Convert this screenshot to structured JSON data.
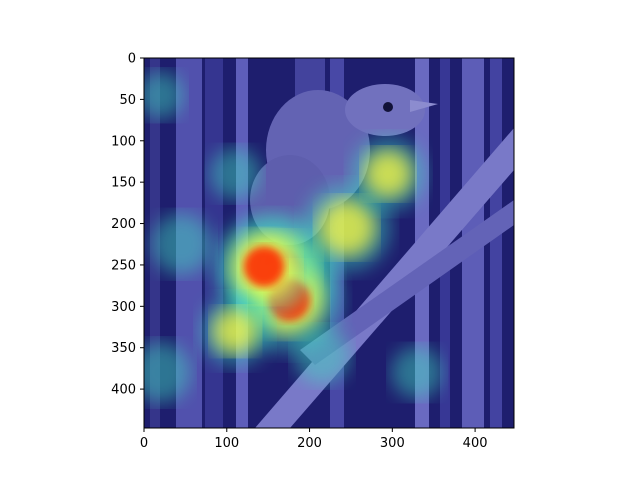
{
  "chart_data": {
    "type": "heatmap",
    "title": "",
    "xlabel": "",
    "ylabel": "",
    "xlim": [
      0,
      447
    ],
    "ylim": [
      447,
      0
    ],
    "xticks": [
      "0",
      "100",
      "200",
      "300",
      "400"
    ],
    "yticks": [
      "0",
      "50",
      "100",
      "150",
      "200",
      "250",
      "300",
      "350",
      "400"
    ],
    "colormap": "jet",
    "grid": false,
    "background_image": "bird-perched-on-reeds",
    "hotspots": [
      {
        "x": 165,
        "y": 258,
        "intensity": 1.0
      },
      {
        "x": 175,
        "y": 292,
        "intensity": 0.95
      },
      {
        "x": 145,
        "y": 252,
        "intensity": 0.9
      },
      {
        "x": 245,
        "y": 205,
        "intensity": 0.75
      },
      {
        "x": 295,
        "y": 140,
        "intensity": 0.6
      },
      {
        "x": 110,
        "y": 330,
        "intensity": 0.55
      },
      {
        "x": 45,
        "y": 225,
        "intensity": 0.45
      },
      {
        "x": 215,
        "y": 360,
        "intensity": 0.4
      },
      {
        "x": 20,
        "y": 380,
        "intensity": 0.45
      },
      {
        "x": 330,
        "y": 380,
        "intensity": 0.35
      },
      {
        "x": 110,
        "y": 140,
        "intensity": 0.35
      },
      {
        "x": 20,
        "y": 45,
        "intensity": 0.3
      }
    ],
    "colors": {
      "hot": "#ff2000",
      "warm": "#ffff40",
      "mid": "#40e0c0",
      "cool": "#2a4cff",
      "cold": "#1c1c7a"
    }
  }
}
